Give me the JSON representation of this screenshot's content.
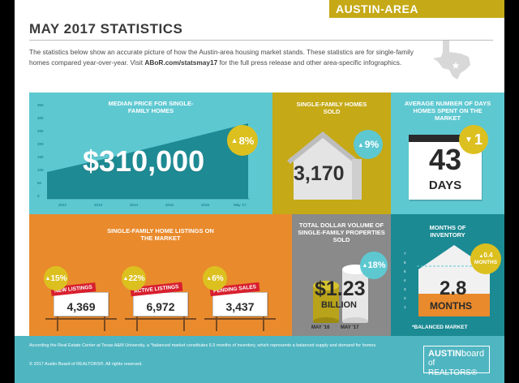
{
  "region_label": "AUSTIN-AREA",
  "title": "MAY 2017 STATISTICS",
  "intro": {
    "text_a": "The statistics below show an accurate picture of how the Austin-area housing market stands. These statistics are for single-family homes compared year-over-year. Visit ",
    "link": "ABoR.com/statsmay17",
    "text_b": " for the full press release and other area-specific infographics."
  },
  "median_price": {
    "header": "MEDIAN PRICE FOR SINGLE-FAMILY HOMES",
    "value": "$310,000",
    "change": "8%",
    "direction": "up",
    "y_ticks": [
      "350",
      "300",
      "250",
      "200",
      "150",
      "100",
      "50",
      "0"
    ],
    "x_ticks": [
      "2012",
      "2013",
      "2014",
      "2015",
      "2016",
      "May '17"
    ]
  },
  "homes_sold": {
    "header": "SINGLE-FAMILY HOMES SOLD",
    "value": "3,170",
    "change": "9%",
    "direction": "up"
  },
  "days_on_market": {
    "header": "AVERAGE NUMBER OF DAYS HOMES SPENT ON THE MARKET",
    "value": "43",
    "unit": "DAYS",
    "change": "1",
    "direction": "down"
  },
  "listings": {
    "header": "SINGLE-FAMILY HOME LISTINGS ON THE MARKET",
    "items": [
      {
        "label": "NEW LISTINGS",
        "value": "4,369",
        "change": "15%"
      },
      {
        "label": "ACTIVE LISTINGS",
        "value": "6,972",
        "change": "22%"
      },
      {
        "label": "PENDING SALES",
        "value": "3,437",
        "change": "6%"
      }
    ]
  },
  "dollar_volume": {
    "header": "TOTAL DOLLAR VOLUME OF SINGLE-FAMILY PROPERTIES SOLD",
    "value": "$1.23",
    "unit": "BILLION",
    "change": "18%",
    "label_prev": "MAY '16",
    "label_curr": "MAY '17"
  },
  "inventory": {
    "header": "MONTHS OF INVENTORY",
    "value": "2.8",
    "unit": "MONTHS",
    "change": "0.4",
    "change_unit": "MONTHS",
    "y_ticks": [
      "7",
      "6",
      "5",
      "4",
      "3",
      "2",
      "1"
    ],
    "footnote": "*BALANCED MARKET"
  },
  "footer": {
    "note": "According the Real Estate Center at Texas A&M University, a *balanced market constitutes 6.5 months of inventory, which represents a balanced supply and demand for homes.",
    "copyright": "© 2017 Austin Board of REALTORS®. All rights reserved.",
    "logo_line1a": "AUSTIN",
    "logo_line1b": "board",
    "logo_line2": "of REALTORS®"
  },
  "colors": {
    "teal": "#5ec8d1",
    "dark_teal": "#1b8a93",
    "gold": "#c5a916",
    "orange": "#e98a2c",
    "gray": "#8a8a8a",
    "footer_teal": "#4fb5c1"
  }
}
